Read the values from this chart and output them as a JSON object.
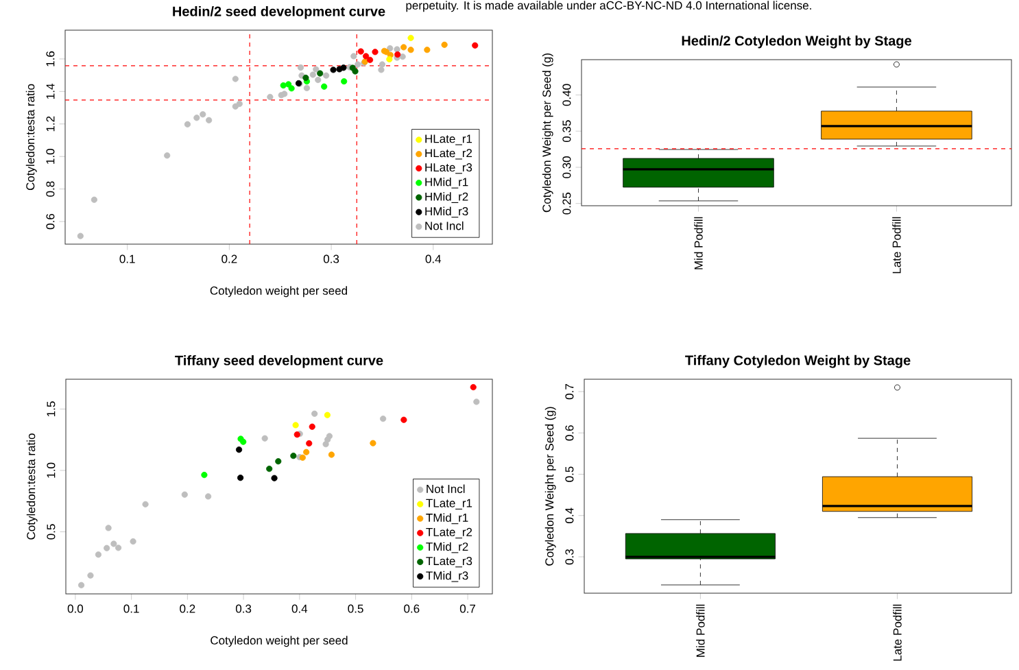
{
  "chart_data": [
    {
      "type": "scatter",
      "title": "Hedin/2 seed development curve",
      "xlabel": "Cotyledon weight per seed",
      "ylabel": "Cotyledon:testa ratio",
      "annotations": [
        "perpetuity. It is made available under aCC-BY-NC-ND 4.0 International license."
      ],
      "xlim": [
        0.039,
        0.458
      ],
      "ylim": [
        0.461,
        1.777
      ],
      "xticks": [
        0.1,
        0.2,
        0.3,
        0.4
      ],
      "yticks": [
        0.6,
        0.8,
        {
          "value": 1,
          "label": "1.0"
        },
        1.2,
        1.4,
        1.6
      ],
      "marker": "circle",
      "legend": "bottom right",
      "ref_lines": [
        {
          "axis": "y",
          "value": 1.558,
          "color": "#ff0000",
          "line_style": "dashed"
        },
        {
          "axis": "y",
          "value": 1.347,
          "color": "#ff0000",
          "line_style": "dashed"
        },
        {
          "axis": "x",
          "value": 0.22,
          "color": "#ff0000",
          "line_style": "dashed"
        },
        {
          "axis": "x",
          "value": 0.325,
          "color": "#ff0000",
          "line_style": "dashed"
        }
      ],
      "series": [
        {
          "name": "HLate_r1",
          "color": "#ffff00",
          "x": [
            0.357,
            0.378
          ],
          "values": [
            1.598,
            1.729
          ]
        },
        {
          "name": "HLate_r2",
          "color": "#ffa500",
          "x": [
            0.333,
            0.352,
            0.354,
            0.358,
            0.371,
            0.378,
            0.394,
            0.411
          ],
          "values": [
            1.583,
            1.649,
            1.643,
            1.624,
            1.672,
            1.656,
            1.656,
            1.687
          ]
        },
        {
          "name": "HLate_r3",
          "color": "#ff0000",
          "x": [
            0.329,
            0.334,
            0.338,
            0.343,
            0.365,
            0.441
          ],
          "values": [
            1.646,
            1.617,
            1.594,
            1.643,
            1.627,
            1.683
          ]
        },
        {
          "name": "HMid_r1",
          "color": "#00ff00",
          "x": [
            0.253,
            0.258,
            0.261,
            0.276,
            0.293,
            0.3125
          ],
          "values": [
            1.437,
            1.444,
            1.419,
            1.462,
            1.43,
            1.462
          ]
        },
        {
          "name": "HMid_r2",
          "color": "#006400",
          "x": [
            0.275,
            0.289,
            0.321,
            0.3235
          ],
          "values": [
            1.484,
            1.511,
            1.545,
            1.524
          ]
        },
        {
          "name": "HMid_r3",
          "color": "#000000",
          "x": [
            0.268,
            0.302,
            0.308,
            0.312
          ],
          "values": [
            1.45,
            1.533,
            1.537,
            1.546
          ]
        },
        {
          "name": "Not Incl",
          "color": "#bebebe",
          "x": [
            0.054,
            0.0675,
            0.139,
            0.159,
            0.168,
            0.174,
            0.18,
            0.206,
            0.206,
            0.21,
            0.24,
            0.251,
            0.254,
            0.269,
            0.276,
            0.271,
            0.27,
            0.282,
            0.285,
            0.287,
            0.295,
            0.318,
            0.326,
            0.322,
            0.332,
            0.35,
            0.349,
            0.3576,
            0.3645,
            0.3645,
            0.37
          ],
          "values": [
            0.511,
            0.734,
            1.006,
            1.198,
            1.238,
            1.259,
            1.223,
            1.477,
            1.308,
            1.324,
            1.366,
            1.377,
            1.385,
            1.447,
            1.421,
            1.498,
            1.547,
            1.503,
            1.536,
            1.471,
            1.498,
            1.549,
            1.566,
            1.617,
            1.575,
            1.566,
            1.533,
            1.665,
            1.659,
            1.608,
            1.614
          ]
        }
      ]
    },
    {
      "type": "box",
      "title": "Hedin/2 Cotyledon Weight by Stage",
      "ylabel": "Cotyledon Weight per Seed (g)",
      "categories": [
        "Mid Podfill",
        "Late Podfill"
      ],
      "colors": [
        "#006400",
        "#ffa500"
      ],
      "boxes": [
        {
          "low": 0.2536,
          "q1": 0.2725,
          "median": 0.2972,
          "q3": 0.3123,
          "high": 0.3246
        },
        {
          "low": 0.3294,
          "q1": 0.3389,
          "median": 0.3569,
          "q3": 0.3777,
          "high": 0.4109,
          "outliers": [
            0.4422
          ]
        }
      ],
      "ylim": [
        0.2469,
        0.4488
      ],
      "yticks": [
        0.25,
        {
          "value": 0.3,
          "label": "0.30"
        },
        0.35,
        {
          "value": 0.4,
          "label": "0.40"
        }
      ],
      "ref_lines": [
        {
          "axis": "y",
          "value": 0.3256,
          "color": "#ff0000",
          "line_style": "dashed"
        }
      ]
    },
    {
      "type": "scatter",
      "title": "Tiffany seed development curve",
      "xlabel": "Cotyledon weight per seed",
      "ylabel": "Cotyledon:testa ratio",
      "xlim": [
        -0.017,
        0.744
      ],
      "ylim": [
        -0.006,
        1.743
      ],
      "xticks": [
        {
          "value": 0,
          "label": "0.0"
        },
        0.1,
        0.2,
        0.3,
        0.4,
        0.5,
        0.6,
        0.7
      ],
      "yticks": [
        0.5,
        {
          "value": 1,
          "label": "1.0"
        },
        1.5
      ],
      "marker": "circle",
      "legend": "bottom right",
      "series": [
        {
          "name": "Not Incl",
          "color": "#bebebe",
          "x": [
            0.0106,
            0.027,
            0.041,
            0.056,
            0.059,
            0.0685,
            0.0767,
            0.103,
            0.125,
            0.195,
            0.237,
            0.338,
            0.4,
            0.4005,
            0.4267,
            0.4533,
            0.45,
            0.4468,
            0.549,
            0.7156
          ],
          "values": [
            0.065,
            0.144,
            0.314,
            0.367,
            0.531,
            0.402,
            0.369,
            0.421,
            0.724,
            0.803,
            0.788,
            1.261,
            1.108,
            1.298,
            1.462,
            1.279,
            1.251,
            1.214,
            1.421,
            1.559
          ]
        },
        {
          "name": "TLate_r1",
          "color": "#ffff00",
          "x": [
            0.393,
            0.4496
          ],
          "values": [
            1.369,
            1.451
          ]
        },
        {
          "name": "TMid_r1",
          "color": "#ffa500",
          "x": [
            0.4055,
            0.412,
            0.457,
            0.531
          ],
          "values": [
            1.104,
            1.149,
            1.128,
            1.222
          ]
        },
        {
          "name": "TLate_r2",
          "color": "#ff0000",
          "x": [
            0.3956,
            0.417,
            0.4225,
            0.586,
            0.71
          ],
          "values": [
            1.292,
            1.22,
            1.356,
            1.412,
            1.678
          ]
        },
        {
          "name": "TMid_r2",
          "color": "#00ff00",
          "x": [
            0.23,
            0.295,
            0.2995
          ],
          "values": [
            0.963,
            1.257,
            1.233
          ]
        },
        {
          "name": "TLate_r3",
          "color": "#006400",
          "x": [
            0.346,
            0.362,
            0.389
          ],
          "values": [
            1.013,
            1.074,
            1.119
          ]
        },
        {
          "name": "TMid_r3",
          "color": "#000000",
          "x": [
            0.292,
            0.2945,
            0.355
          ],
          "values": [
            1.169,
            0.94,
            0.937
          ]
        }
      ]
    },
    {
      "type": "box",
      "title": "Tiffany Cotyledon Weight by Stage",
      "ylabel": "Cotyledon Weight per Seed (g)",
      "categories": [
        "Mid Podfill",
        "Late Podfill"
      ],
      "colors": [
        "#006400",
        "#ffa500"
      ],
      "boxes": [
        {
          "low": 0.232,
          "q1": 0.295,
          "median": 0.3,
          "q3": 0.3565,
          "high": 0.39
        },
        {
          "low": 0.395,
          "q1": 0.41,
          "median": 0.423,
          "q3": 0.494,
          "high": 0.587,
          "outliers": [
            0.71
          ]
        }
      ],
      "ylim": [
        0.212,
        0.73
      ],
      "yticks": [
        0.3,
        0.4,
        0.5,
        0.6,
        0.7
      ]
    }
  ]
}
